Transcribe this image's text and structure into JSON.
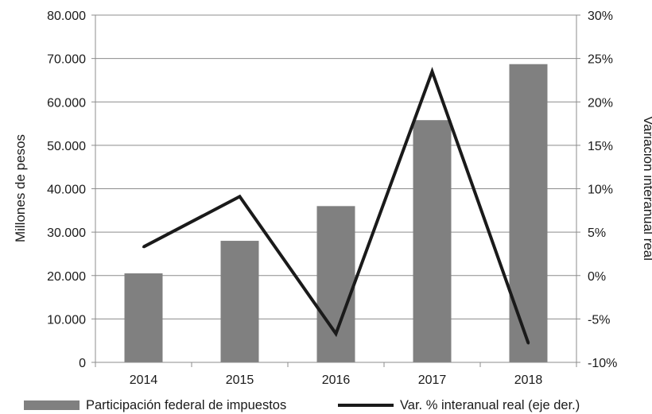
{
  "chart_data": {
    "type": "bar",
    "categories": [
      "2014",
      "2015",
      "2016",
      "2017",
      "2018"
    ],
    "series": [
      {
        "name": "Participación federal de impuestos",
        "type": "bar",
        "axis": "left",
        "values": [
          20500,
          28000,
          36000,
          55800,
          68700
        ],
        "color": "#808080"
      },
      {
        "name": "Var. % interanual real (eje der.)",
        "type": "line",
        "axis": "right",
        "values": [
          3.3,
          9.1,
          -6.7,
          23.5,
          -7.8
        ],
        "color": "#1a1a1a"
      }
    ],
    "ylabel": "Millones de pesos",
    "y2label": "Variación interanual real",
    "ylim": [
      0,
      80000
    ],
    "y2lim": [
      -10,
      30
    ],
    "yticks": [
      "0",
      "10.000",
      "20.000",
      "30.000",
      "40.000",
      "50.000",
      "60.000",
      "70.000",
      "80.000"
    ],
    "y2ticks": [
      "-10%",
      "-5%",
      "0%",
      "5%",
      "10%",
      "15%",
      "20%",
      "25%",
      "30%"
    ],
    "grid": true,
    "legend": "bottom"
  }
}
